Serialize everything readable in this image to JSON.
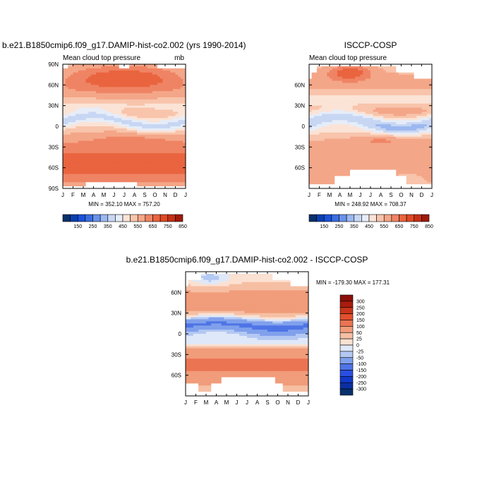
{
  "chart_data": [
    {
      "type": "heatmap",
      "title": "b.e21.B1850cmip6.f09_g17.DAMIP-hist-co2.002 (yrs 1990-2014)",
      "subtitle": "Mean cloud top pressure",
      "units": "mb",
      "x_ticks": [
        "J",
        "F",
        "M",
        "A",
        "M",
        "J",
        "J",
        "A",
        "S",
        "O",
        "N",
        "D",
        "J"
      ],
      "y_ticks": [
        "90N",
        "60N",
        "30N",
        "0",
        "30S",
        "60S",
        "90S"
      ],
      "y_tick_values": [
        90,
        60,
        30,
        0,
        -30,
        -60,
        -90
      ],
      "ylim": [
        -90,
        90
      ],
      "stats": "MIN = 352.10  MAX = 757.20",
      "colorbar_labels": [
        "150",
        "250",
        "350",
        "450",
        "550",
        "650",
        "750",
        "850"
      ],
      "colorbar_levels": [
        100,
        150,
        200,
        250,
        300,
        350,
        400,
        450,
        500,
        550,
        600,
        650,
        700,
        750,
        800,
        850,
        900
      ]
    },
    {
      "type": "heatmap",
      "title": "ISCCP-COSP",
      "subtitle": "Mean cloud top pressure",
      "x_ticks": [
        "J",
        "F",
        "M",
        "A",
        "M",
        "J",
        "J",
        "A",
        "S",
        "O",
        "N",
        "D",
        "J"
      ],
      "y_ticks": [
        "60N",
        "30N",
        "0",
        "30S",
        "60S"
      ],
      "y_tick_values": [
        60,
        30,
        0,
        -30,
        -60
      ],
      "ylim": [
        -90,
        90
      ],
      "stats": "MIN = 248.92  MAX = 708.37",
      "colorbar_labels": [
        "150",
        "250",
        "350",
        "450",
        "550",
        "650",
        "750",
        "850"
      ],
      "colorbar_levels": [
        100,
        150,
        200,
        250,
        300,
        350,
        400,
        450,
        500,
        550,
        600,
        650,
        700,
        750,
        800,
        850,
        900
      ]
    },
    {
      "type": "heatmap",
      "title": "b.e21.B1850cmip6.f09_g17.DAMIP-hist-co2.002 - ISCCP-COSP",
      "x_ticks": [
        "J",
        "F",
        "M",
        "A",
        "M",
        "J",
        "J",
        "A",
        "S",
        "O",
        "N",
        "D",
        "J"
      ],
      "y_ticks": [
        "60N",
        "30N",
        "0",
        "30S",
        "60S"
      ],
      "y_tick_values": [
        60,
        30,
        0,
        -30,
        -60
      ],
      "ylim": [
        -90,
        90
      ],
      "stats": "MIN = -179.30  MAX = 177.31",
      "colorbar_labels": [
        "300",
        "250",
        "200",
        "150",
        "100",
        "50",
        "25",
        "0",
        "-25",
        "-50",
        "-100",
        "-150",
        "-200",
        "-250",
        "-300"
      ]
    }
  ],
  "palette": {
    "abs": [
      "#08306b",
      "#0a3fb0",
      "#1a52d9",
      "#3a6ee0",
      "#6a92ea",
      "#9cb8f0",
      "#c7d6f3",
      "#e6edf8",
      "#fbe3d6",
      "#f8c4ab",
      "#f4a688",
      "#ef8464",
      "#e9643f",
      "#e04a24",
      "#c43116",
      "#9e1a0b"
    ],
    "diff": [
      "#08306b",
      "#0b2fa0",
      "#1238c8",
      "#2a4fe0",
      "#4e74e6",
      "#80a0ec",
      "#b3c8f2",
      "#dfe8f8",
      "#fbe1d2",
      "#f6bfa3",
      "#f19c7a",
      "#eb7452",
      "#e2502d",
      "#c8351a",
      "#a81c0e",
      "#8a0f08"
    ],
    "missing": "#ffffff"
  }
}
